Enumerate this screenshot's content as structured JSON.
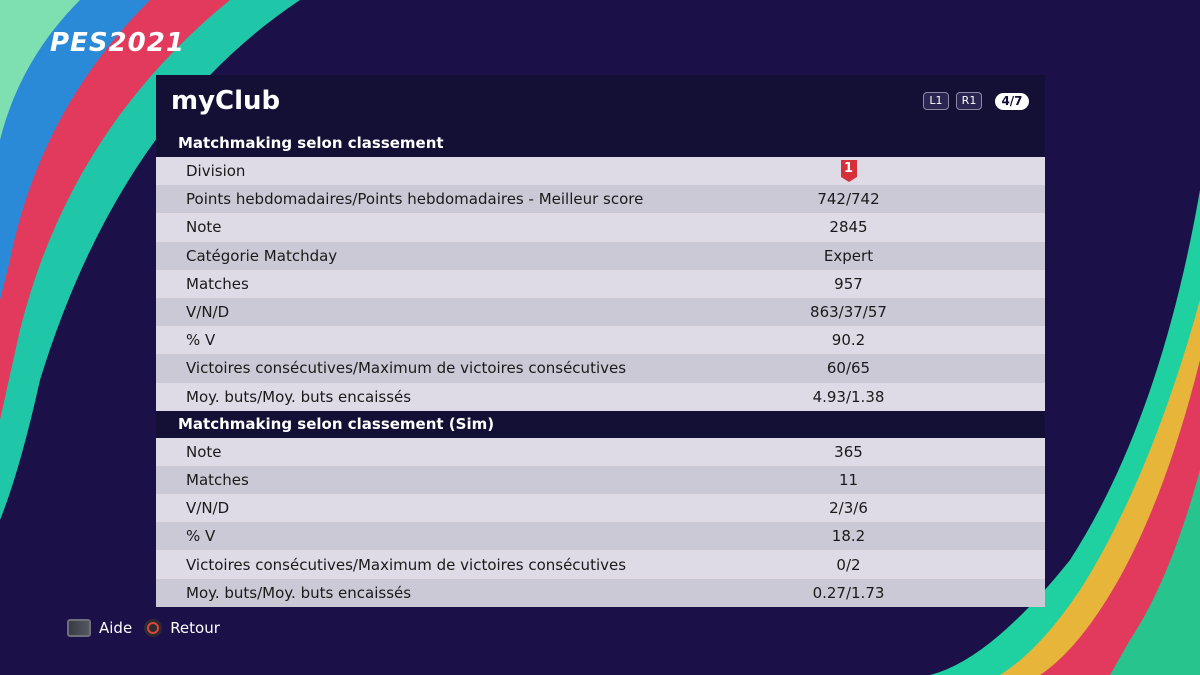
{
  "app": {
    "logo": "PES2021",
    "title": "myClub",
    "nav": {
      "l1": "L1",
      "r1": "R1",
      "page": "4/7"
    }
  },
  "sections": [
    {
      "header": "Matchmaking selon classement",
      "rows": [
        {
          "label": "Division",
          "value": "1",
          "type": "badge",
          "badge_color": "#d6313b"
        },
        {
          "label": "Points hebdomadaires/Points hebdomadaires - Meilleur score",
          "value": "742/742"
        },
        {
          "label": "Note",
          "value": "2845"
        },
        {
          "label": "Catégorie Matchday",
          "value": "Expert"
        },
        {
          "label": "Matches",
          "value": "957"
        },
        {
          "label": "V/N/D",
          "value": "863/37/57"
        },
        {
          "label": "% V",
          "value": "90.2"
        },
        {
          "label": "Victoires consécutives/Maximum de victoires consécutives",
          "value": "60/65"
        },
        {
          "label": "Moy. buts/Moy. buts encaissés",
          "value": "4.93/1.38"
        }
      ]
    },
    {
      "header": "Matchmaking selon classement (Sim)",
      "rows": [
        {
          "label": "Note",
          "value": "365"
        },
        {
          "label": "Matches",
          "value": "11"
        },
        {
          "label": "V/N/D",
          "value": "2/3/6"
        },
        {
          "label": "% V",
          "value": "18.2"
        },
        {
          "label": "Victoires consécutives/Maximum de victoires consécutives",
          "value": "0/2"
        },
        {
          "label": "Moy. buts/Moy. buts encaissés",
          "value": "0.27/1.73"
        }
      ]
    }
  ],
  "footer": {
    "help_label": "Aide",
    "help_icon": "touchpad-icon",
    "back_label": "Retour",
    "back_icon": "circle-button-icon"
  },
  "colors": {
    "background": "#1c1048",
    "panel": "#140f35",
    "row_light": "#dedbe6",
    "row_dark": "#ccc9d6",
    "accent_red": "#e63946",
    "accent_green": "#1fd0a0"
  }
}
